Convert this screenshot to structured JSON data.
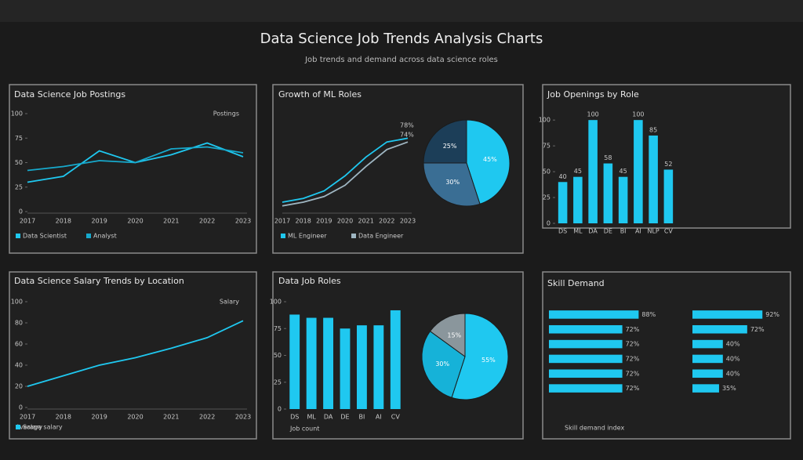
{
  "header": {
    "title": "Data Science Job Trends Analysis Charts",
    "subtitle": "Job trends and demand across data science roles"
  },
  "chart_data": [
    {
      "type": "line",
      "title": "Data Science Job Postings",
      "annotation": "Postings",
      "categories": [
        "2017",
        "2018",
        "2019",
        "2020",
        "2021",
        "2022",
        "2023"
      ],
      "series": [
        {
          "name": "Data Scientist",
          "color": "#1fc8f0",
          "values": [
            30,
            36,
            62,
            50,
            58,
            70,
            56
          ]
        },
        {
          "name": "Analyst",
          "color": "#17a9cc",
          "values": [
            42,
            46,
            52,
            50,
            64,
            66,
            60
          ]
        }
      ],
      "ylim": [
        0,
        100
      ],
      "yticks": [
        0,
        25,
        50,
        75,
        100
      ]
    },
    {
      "type": "line",
      "title": "Growth of ML Roles",
      "categories": [
        "2017",
        "2018",
        "2019",
        "2020",
        "2021",
        "2022",
        "2023"
      ],
      "series": [
        {
          "name": "ML Engineer",
          "color": "#1fc8f0",
          "values": [
            10,
            14,
            22,
            38,
            58,
            74,
            78
          ]
        },
        {
          "name": "Data Engineer",
          "color": "#9fb6c2",
          "values": [
            6,
            10,
            16,
            28,
            48,
            66,
            74
          ]
        }
      ],
      "ylim": [
        0,
        100
      ],
      "yticks": [],
      "value_labels": [
        "78%",
        "74%"
      ]
    },
    {
      "type": "pie",
      "values": [
        45,
        30,
        25
      ],
      "value_labels": [
        "45%",
        "30%",
        "25%"
      ],
      "colors": [
        "#1fc8f0",
        "#3a6e94",
        "#1c3e58"
      ]
    },
    {
      "type": "bar",
      "title": "Job Openings by Role",
      "color": "#1fc8f0",
      "categories": [
        "DS",
        "ML",
        "DA",
        "DE",
        "BI",
        "AI",
        "NLP",
        "CV"
      ],
      "values": [
        40,
        45,
        100,
        58,
        45,
        100,
        85,
        52
      ],
      "value_labels": [
        "40",
        "45",
        "100",
        "58",
        "45",
        "100",
        "85",
        "52"
      ],
      "ylim": [
        0,
        110
      ],
      "yticks": [
        0,
        25,
        50,
        75,
        100
      ]
    },
    {
      "type": "line",
      "title": "Data Science Salary Trends by Location",
      "annotation": "Salary",
      "categories": [
        "2017",
        "2018",
        "2019",
        "2020",
        "2021",
        "2022",
        "2023"
      ],
      "series": [
        {
          "name": "Salary",
          "color": "#1fc8f0",
          "values": [
            20,
            30,
            40,
            47,
            56,
            66,
            82
          ]
        }
      ],
      "ylim": [
        0,
        100
      ],
      "yticks": [
        0,
        20,
        40,
        60,
        80,
        100
      ],
      "legend_note": "Average salary"
    },
    {
      "type": "bar",
      "title": "Data Job Roles",
      "color": "#1fc8f0",
      "categories": [
        "DS",
        "ML",
        "DA",
        "DE",
        "BI",
        "AI",
        "CV"
      ],
      "values": [
        88,
        85,
        85,
        75,
        78,
        78,
        92
      ],
      "ylim": [
        0,
        100
      ],
      "yticks": [
        0,
        25,
        50,
        75,
        100
      ],
      "legend_note": "Job count"
    },
    {
      "type": "pie",
      "values": [
        55,
        30,
        15
      ],
      "value_labels": [
        "55%",
        "30%",
        "15%"
      ],
      "colors": [
        "#1fc8f0",
        "#16b2d8",
        "#8a969c"
      ]
    },
    {
      "type": "hbar",
      "title": "Skill Demand",
      "color": "#1fc8f0",
      "values": [
        88,
        72,
        72,
        72,
        72,
        72
      ],
      "value_labels": [
        "88%",
        "72%",
        "72%",
        "72%",
        "72%",
        "72%"
      ],
      "xlim": [
        0,
        100
      ],
      "legend_note": "Skill demand index"
    },
    {
      "type": "hbar",
      "color": "#1fc8f0",
      "values": [
        92,
        72,
        40,
        40,
        40,
        35
      ],
      "value_labels": [
        "92%",
        "72%",
        "40%",
        "40%",
        "40%",
        "35%"
      ],
      "xlim": [
        0,
        100
      ]
    }
  ]
}
